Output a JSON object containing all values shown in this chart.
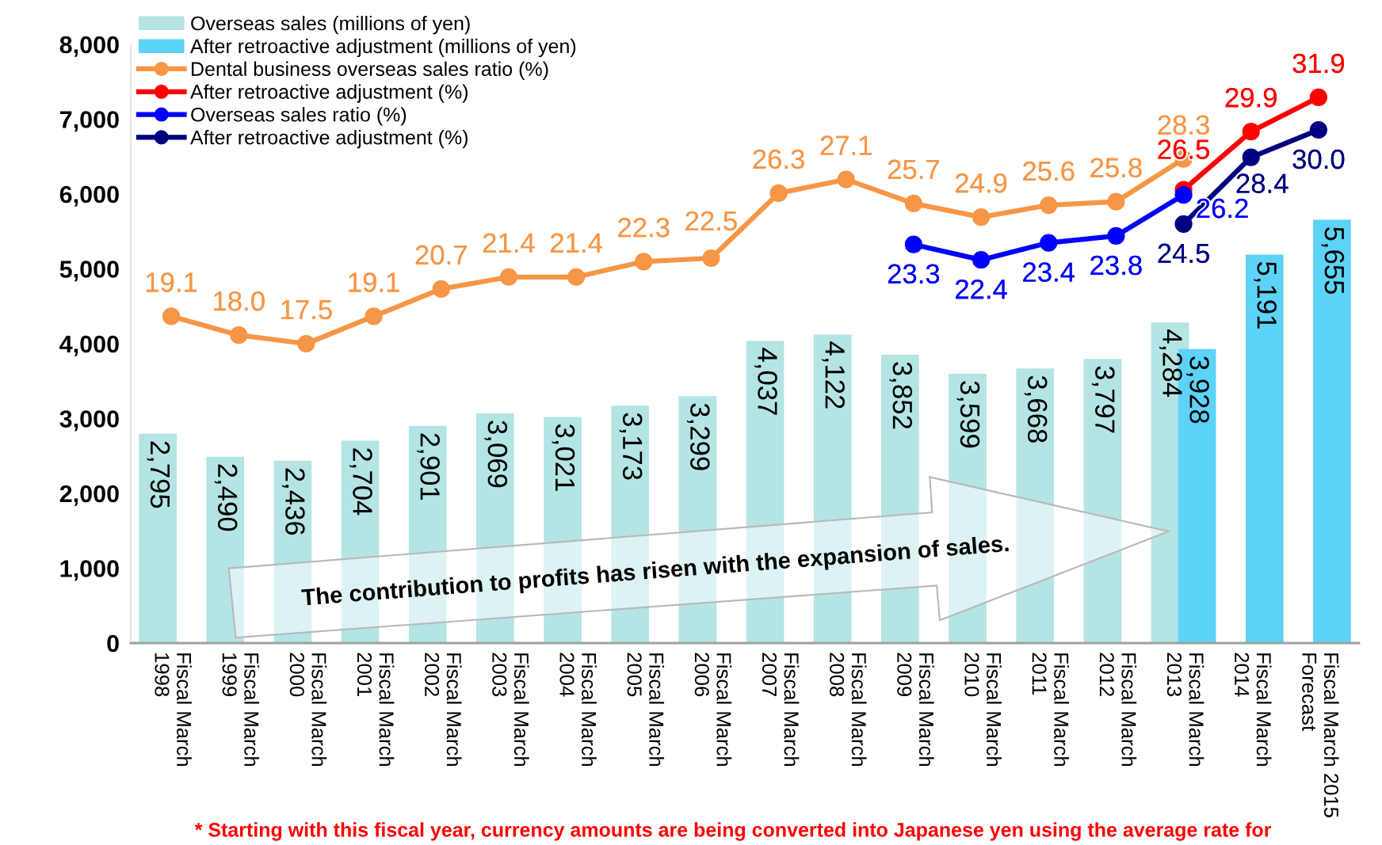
{
  "chart_data": {
    "type": "bar",
    "categories": [
      "Fiscal March\n1998",
      "Fiscal March\n1999",
      "Fiscal March\n2000",
      "Fiscal March\n2001",
      "Fiscal March\n2002",
      "Fiscal March\n2003",
      "Fiscal March\n2004",
      "Fiscal March\n2005",
      "Fiscal March\n2006",
      "Fiscal March\n2007",
      "Fiscal March\n2008",
      "Fiscal March\n2009",
      "Fiscal March\n2010",
      "Fiscal March\n2011",
      "Fiscal March\n2012",
      "Fiscal March\n2013",
      "Fiscal March\n2014",
      "Fiscal March 2015\nForecast"
    ],
    "series": [
      {
        "name": "Overseas sales (millions of yen)",
        "color": "#b4e4e4",
        "values": [
          2795,
          2490,
          2436,
          2704,
          2901,
          3069,
          3021,
          3173,
          3299,
          4037,
          4122,
          3852,
          3599,
          3668,
          3797,
          4284,
          null,
          null
        ],
        "value_labels": [
          "2,795",
          "2,490",
          "2,436",
          "2,704",
          "2,901",
          "3,069",
          "3,021",
          "3,173",
          "3,299",
          "4,037",
          "4,122",
          "3,852",
          "3,599",
          "3,668",
          "3,797",
          "4,284",
          null,
          null
        ]
      },
      {
        "name": "After retroactive adjustment (millions of yen)",
        "color": "#5cd3f7",
        "values": [
          null,
          null,
          null,
          null,
          null,
          null,
          null,
          null,
          null,
          null,
          null,
          null,
          null,
          null,
          null,
          3928,
          5191,
          5655
        ],
        "value_labels": [
          null,
          null,
          null,
          null,
          null,
          null,
          null,
          null,
          null,
          null,
          null,
          null,
          null,
          null,
          null,
          "3,928",
          "5,191",
          "5,655"
        ]
      },
      {
        "name": "Dental business overseas sales ratio (%)",
        "type": "line",
        "axis": "y2",
        "color": "#f79646",
        "values": [
          19.1,
          18.0,
          17.5,
          19.1,
          20.7,
          21.4,
          21.4,
          22.3,
          22.5,
          26.3,
          27.1,
          25.7,
          24.9,
          25.6,
          25.8,
          28.3,
          null,
          null
        ],
        "value_labels": [
          "19.1",
          "18.0",
          "17.5",
          "19.1",
          "20.7",
          "21.4",
          "21.4",
          "22.3",
          "22.5",
          "26.3",
          "27.1",
          "25.7",
          "24.9",
          "25.6",
          "25.8",
          "28.3",
          null,
          null
        ]
      },
      {
        "name": "After retroactive adjustment (%)",
        "type": "line",
        "axis": "y2",
        "color": "#ff0000",
        "values": [
          null,
          null,
          null,
          null,
          null,
          null,
          null,
          null,
          null,
          null,
          null,
          null,
          null,
          null,
          null,
          26.5,
          29.9,
          31.9
        ],
        "value_labels": [
          null,
          null,
          null,
          null,
          null,
          null,
          null,
          null,
          null,
          null,
          null,
          null,
          null,
          null,
          null,
          "26.5",
          "29.9",
          "31.9"
        ]
      },
      {
        "name": "Overseas sales ratio (%)",
        "type": "line",
        "axis": "y2",
        "color": "#0000ff",
        "values": [
          null,
          null,
          null,
          null,
          null,
          null,
          null,
          null,
          null,
          null,
          null,
          23.3,
          22.4,
          23.4,
          23.8,
          26.2,
          null,
          null
        ],
        "value_labels": [
          null,
          null,
          null,
          null,
          null,
          null,
          null,
          null,
          null,
          null,
          null,
          "23.3",
          "22.4",
          "23.4",
          "23.8",
          "26.2",
          null,
          null
        ]
      },
      {
        "name": "After retroactive adjustment (%)",
        "type": "line",
        "axis": "y2",
        "color": "#000080",
        "values": [
          null,
          null,
          null,
          null,
          null,
          null,
          null,
          null,
          null,
          null,
          null,
          null,
          null,
          null,
          null,
          24.5,
          28.4,
          30.0
        ],
        "value_labels": [
          null,
          null,
          null,
          null,
          null,
          null,
          null,
          null,
          null,
          null,
          null,
          null,
          null,
          null,
          null,
          "24.5",
          "28.4",
          "30.0"
        ]
      }
    ],
    "ylim": [
      0,
      8000
    ],
    "yticks": [
      0,
      {
        "value": 1000,
        "label": "1,000"
      },
      {
        "value": 2000,
        "label": "2,000"
      },
      {
        "value": 3000,
        "label": "3,000"
      },
      {
        "value": 4000,
        "label": "4,000"
      },
      {
        "value": 5000,
        "label": "5,000"
      },
      {
        "value": 6000,
        "label": "6,000"
      },
      {
        "value": 7000,
        "label": "7,000"
      },
      {
        "value": 8000,
        "label": "8,000"
      }
    ],
    "y2lim": [
      0,
      35
    ],
    "annotations": [
      "The contribution to profits has risen with the expansion of sales.",
      "* Starting with this fiscal year, currency amounts are being converted into Japanese yen using the average rate for"
    ],
    "legend": "top left",
    "marker": "circle",
    "line_style": "solid"
  }
}
